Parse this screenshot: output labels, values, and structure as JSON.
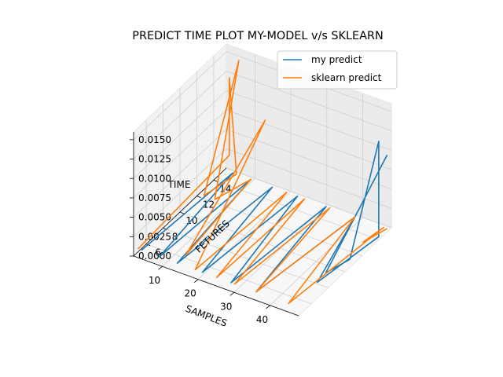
{
  "chart_data": {
    "type": "line",
    "projection": "3d",
    "title": "PREDICT TIME PLOT MY-MODEL v/s SKLEARN",
    "xlabel": "SAMPLES",
    "ylabel": "FETURES",
    "zlabel": "TIME",
    "xlim": [
      2,
      48
    ],
    "ylim": [
      4.5,
      15.5
    ],
    "zlim": [
      0,
      0.016
    ],
    "xticks": [
      10,
      20,
      30,
      40
    ],
    "yticks": [
      6,
      8,
      10,
      12,
      14
    ],
    "zticks": [
      "0.0000",
      "0.0025",
      "0.0050",
      "0.0075",
      "0.0100",
      "0.0125",
      "0.0150"
    ],
    "grid": true,
    "legend_position": "top-right",
    "series": [
      {
        "name": "my predict",
        "color": "#1f77b4",
        "points": [
          [
            3,
            5,
            0.0004
          ],
          [
            5,
            15,
            0.0004
          ],
          [
            8,
            5,
            0.0004
          ],
          [
            10,
            15,
            0.0004
          ],
          [
            13,
            5,
            0.0004
          ],
          [
            16,
            15,
            0.0004
          ],
          [
            20,
            5,
            0.0004
          ],
          [
            23,
            15,
            0.0004
          ],
          [
            28,
            5,
            0.0004
          ],
          [
            31,
            15,
            0.0004
          ],
          [
            35,
            5,
            0.0004
          ],
          [
            39,
            15,
            0.0004
          ],
          [
            45,
            8,
            0.0002
          ],
          [
            48,
            14,
            0.0004
          ],
          [
            48,
            14,
            0.0127
          ],
          [
            47,
            11,
            0.0004
          ],
          [
            45,
            9,
            0.0004
          ],
          [
            48,
            15,
            0.0099
          ]
        ]
      },
      {
        "name": "sklearn predict",
        "color": "#ff7f0e",
        "points": [
          [
            2,
            5,
            0.0004
          ],
          [
            4,
            15,
            0.0025
          ],
          [
            4,
            15,
            0.0125
          ],
          [
            6,
            15,
            0.0004
          ],
          [
            4,
            12,
            0.0004
          ],
          [
            9,
            14,
            0.0166
          ],
          [
            7,
            12,
            0.0004
          ],
          [
            10,
            15,
            0.0004
          ],
          [
            13,
            6,
            0.0004
          ],
          [
            14,
            15,
            0.0087
          ],
          [
            18,
            5,
            0.0004
          ],
          [
            20,
            15,
            0.0004
          ],
          [
            24,
            5,
            0.0004
          ],
          [
            25,
            15,
            0.0004
          ],
          [
            29,
            5,
            0.0004
          ],
          [
            32,
            15,
            0.0004
          ],
          [
            35,
            5,
            0.0004
          ],
          [
            39,
            15,
            0.0004
          ],
          [
            44,
            5,
            0.0004
          ],
          [
            47,
            15,
            0.0004
          ],
          [
            46,
            13,
            0.0004
          ],
          [
            48,
            15,
            0.0004
          ]
        ]
      }
    ]
  }
}
